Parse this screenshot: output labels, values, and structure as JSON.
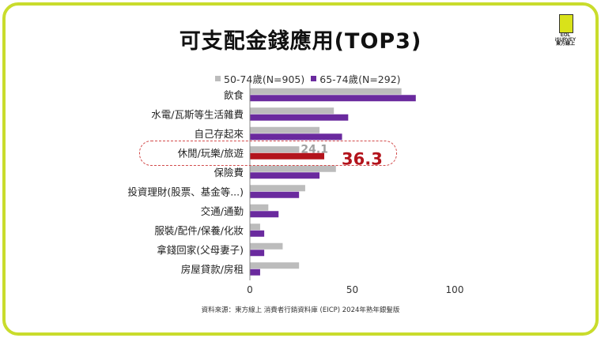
{
  "title": "可支配金錢應用(TOP3)",
  "logo": {
    "line1": "EOL",
    "line2": "iSURVEY",
    "line3": "東方線上"
  },
  "source": "資料來源：東方線上 消費者行銷資料庫 (EICP) 2024年熟年銀髮版",
  "colors": {
    "series1": "#bcbcbc",
    "series2": "#6a2a9e",
    "highlight_bar": "#b3141c",
    "frame": "#c9dc2c"
  },
  "chart_data": {
    "type": "bar",
    "orientation": "horizontal",
    "categories": [
      "飲食",
      "水電/瓦斯等生活雜費",
      "自己存起來",
      "休閒/玩樂/旅遊",
      "保險費",
      "投資理財(股票、基金等...)",
      "交通/通勤",
      "服裝/配件/保養/化妝",
      "拿錢回家(父母妻子)",
      "房屋貸款/房租"
    ],
    "series": [
      {
        "name": "50-74歲(N=905)",
        "values": [
          74,
          41,
          34,
          24.1,
          42,
          27,
          9,
          5,
          16,
          24
        ]
      },
      {
        "name": "65-74歲(N=292)",
        "values": [
          81,
          48,
          45,
          36.3,
          34,
          24,
          14,
          7,
          7,
          5
        ]
      }
    ],
    "xlim": [
      0,
      100
    ],
    "xticks": [
      "0",
      "50",
      "100"
    ],
    "highlight": {
      "category_index": 3,
      "labels": [
        "24.1",
        "36.3"
      ]
    }
  }
}
